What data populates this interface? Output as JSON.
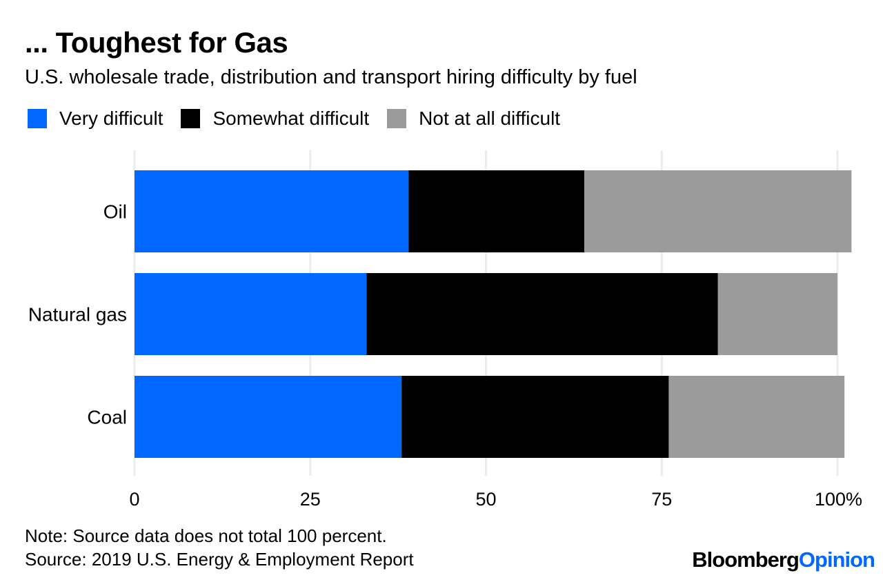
{
  "chart_data": {
    "type": "bar",
    "orientation": "horizontal",
    "stacked": true,
    "title": "... Toughest for Gas",
    "subtitle": "U.S. wholesale trade, distribution and transport hiring difficulty by fuel",
    "categories": [
      "Oil",
      "Natural gas",
      "Coal"
    ],
    "series": [
      {
        "name": "Very difficult",
        "color": "#0068ff",
        "values": [
          39,
          33,
          38
        ]
      },
      {
        "name": "Somewhat difficult",
        "color": "#000000",
        "values": [
          25,
          50,
          38
        ]
      },
      {
        "name": "Not at all difficult",
        "color": "#9b9b9b",
        "values": [
          38,
          17,
          25
        ]
      }
    ],
    "xlim": [
      0,
      100
    ],
    "x_ticks": [
      {
        "value": 0,
        "label": "0"
      },
      {
        "value": 25,
        "label": "25"
      },
      {
        "value": 50,
        "label": "50"
      },
      {
        "value": 75,
        "label": "75"
      },
      {
        "value": 100,
        "label": "100%"
      }
    ],
    "grid": true,
    "legend_position": "top-left",
    "note": "Note: Source data does not total 100 percent.",
    "source": "Source: 2019 U.S. Energy & Employment Report"
  },
  "brand": {
    "part1": "Bloomberg",
    "part2": "Opinion"
  }
}
